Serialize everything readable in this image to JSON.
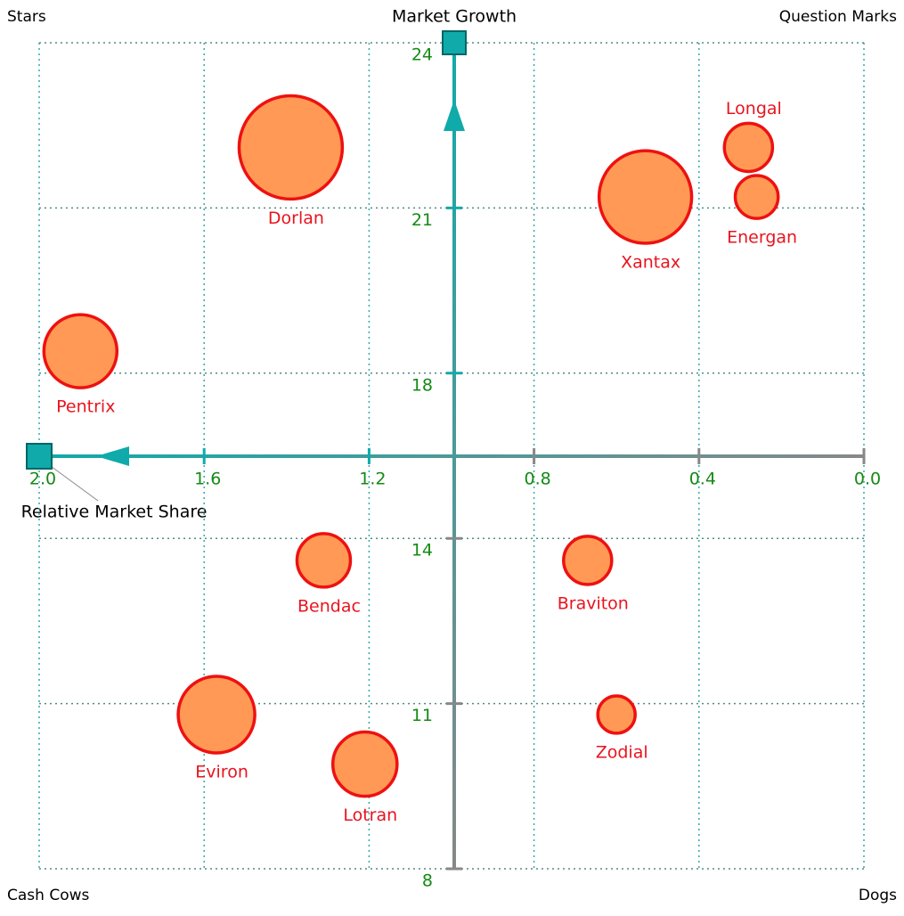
{
  "chart_data": {
    "type": "bubble",
    "x_label": "Relative Market Share",
    "y_label": "Market Growth",
    "quadrants": {
      "top_left": "Stars",
      "top_right": "Question Marks",
      "bottom_left": "Cash Cows",
      "bottom_right": "Dogs"
    },
    "xlim": [
      2.0,
      0.0
    ],
    "xticks": [
      {
        "value": 2.0,
        "label": "2.0"
      },
      1.6,
      1.2,
      0.8,
      0.4,
      {
        "value": 0.0,
        "label": "0.0"
      }
    ],
    "ylim": [
      8,
      24
    ],
    "yticks": [
      24,
      21,
      18,
      14,
      11,
      8
    ],
    "grid": true,
    "color": "#ff9955",
    "edge_color": "#ee1111",
    "labels": [
      "Dorlan",
      "Xantax",
      "Longal",
      "Energan",
      "Pentrix",
      "Bendac",
      "Braviton",
      "Eviron",
      "Lotran",
      "Zodial"
    ],
    "x": [
      1.39,
      0.53,
      0.28,
      0.26,
      1.9,
      1.31,
      0.67,
      1.57,
      1.21,
      0.6
    ],
    "y": [
      22.1,
      21.2,
      22.1,
      21.2,
      18.4,
      13.6,
      13.6,
      10.8,
      9.9,
      10.8
    ],
    "sizes": [
      33.6,
      27,
      7.3,
      5.8,
      16.8,
      9,
      7.3,
      18.5,
      13,
      4.4
    ]
  }
}
